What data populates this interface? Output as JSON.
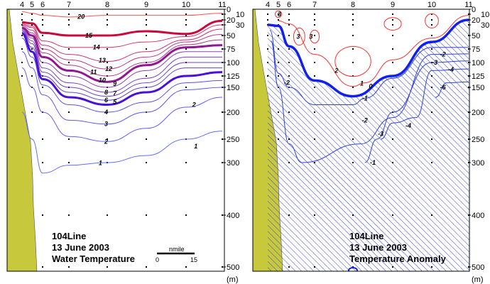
{
  "chart_data": [
    {
      "type": "contour",
      "title_lines": [
        "104Line",
        "13 June 2003",
        "Water Temperature"
      ],
      "stations": [
        "4",
        "5",
        "6",
        "7",
        "8",
        "9",
        "10",
        "11"
      ],
      "depth_ticks": [
        0,
        10,
        20,
        30,
        50,
        75,
        100,
        125,
        150,
        200,
        250,
        300,
        400,
        500
      ],
      "depth_unit": "(m)",
      "ylim": [
        0,
        500
      ],
      "scale_bar": {
        "unit": "nmile",
        "start": "0",
        "end": "15"
      },
      "contours": [
        {
          "level": "20",
          "color": "#ff5050",
          "thick": false,
          "depths": [
            5,
            8,
            12,
            15,
            12,
            12,
            12,
            8
          ],
          "label_at": [
            7.3,
            17
          ]
        },
        {
          "level": "15",
          "color": "#c80a3c",
          "thick": true,
          "depths": [
            25,
            27,
            45,
            50,
            50,
            42,
            47,
            22
          ],
          "label_at": [
            7.5,
            50
          ]
        },
        {
          "level": "14",
          "color": "#d8306a",
          "thick": false,
          "depths": [
            28,
            32,
            60,
            72,
            72,
            62,
            52,
            30
          ],
          "label_at": [
            7.7,
            73
          ]
        },
        {
          "level": "13",
          "color": "#c8307a",
          "thick": false,
          "depths": [
            30,
            35,
            68,
            85,
            98,
            80,
            58,
            38
          ],
          "label_at": [
            7.85,
            92
          ]
        },
        {
          "level": "12",
          "color": "#c03888",
          "thick": false,
          "depths": [
            32,
            40,
            75,
            95,
            112,
            90,
            62,
            48
          ],
          "label_at": [
            7.8,
            106
          ]
        },
        {
          "level": "11",
          "color": "#b03890",
          "thick": false,
          "depths": [
            34,
            45,
            82,
            105,
            125,
            100,
            67,
            58
          ],
          "label_at": [
            7.85,
            120
          ]
        },
        {
          "level": "10",
          "color": "#901890",
          "thick": true,
          "depths": [
            36,
            50,
            90,
            115,
            138,
            105,
            72,
            68
          ],
          "label_at": [
            7.85,
            135
          ]
        },
        {
          "level": "9",
          "color": "#9040b0",
          "thick": false,
          "depths": [
            38,
            55,
            100,
            125,
            150,
            115,
            80,
            80
          ],
          "label_at": [
            8.0,
            150
          ]
        },
        {
          "level": "8",
          "color": "#8040c0",
          "thick": false,
          "depths": [
            40,
            60,
            110,
            140,
            160,
            130,
            90,
            90
          ],
          "label_at": [
            8.0,
            158
          ]
        },
        {
          "level": "7",
          "color": "#7040c8",
          "thick": false,
          "depths": [
            42,
            65,
            118,
            150,
            168,
            140,
            100,
            100
          ],
          "label_at": [
            8.0,
            166
          ]
        },
        {
          "level": "6",
          "color": "#6040d0",
          "thick": false,
          "depths": [
            44,
            72,
            125,
            160,
            176,
            150,
            110,
            110
          ],
          "label_at": [
            8.0,
            174
          ]
        },
        {
          "level": "5",
          "color": "#4a10d8",
          "thick": true,
          "depths": [
            46,
            80,
            132,
            170,
            185,
            160,
            125,
            118
          ],
          "label_at": [
            8.0,
            184
          ]
        },
        {
          "level": "4",
          "color": "#5a50e8",
          "thick": false,
          "depths": [
            55,
            90,
            145,
            185,
            200,
            180,
            140,
            135
          ],
          "label_at": [
            8.0,
            200
          ]
        },
        {
          "level": "3",
          "color": "#5a5af0",
          "thick": false,
          "depths": [
            80,
            110,
            165,
            215,
            222,
            200,
            155,
            150
          ],
          "label_at": [
            8.0,
            222
          ]
        },
        {
          "level": "2",
          "color": "#6060f8",
          "thick": false,
          "depths": [
            110,
            150,
            200,
            245,
            255,
            230,
            190,
            170
          ],
          "label_at": [
            8.0,
            255
          ]
        },
        {
          "level": "1",
          "color": "#6070ff",
          "thick": false,
          "depths": [
            200,
            250,
            320,
            305,
            300,
            285,
            250,
            235
          ],
          "label_at": [
            7.85,
            300
          ]
        }
      ],
      "extra_labels": [
        {
          "text": "2",
          "at": [
            10.25,
            185
          ]
        },
        {
          "text": "1",
          "at": [
            10.3,
            265
          ]
        }
      ]
    },
    {
      "type": "contour",
      "title_lines": [
        "104Line",
        "13 June 2003",
        "Temperature Anomaly"
      ],
      "stations": [
        "4",
        "5",
        "6",
        "7",
        "8",
        "9",
        "10",
        "11"
      ],
      "depth_ticks": [
        0,
        10,
        20,
        30,
        50,
        75,
        100,
        125,
        150,
        200,
        250,
        300,
        400,
        500
      ],
      "depth_unit": "(m)",
      "ylim": [
        0,
        500
      ],
      "hatch_color": "#3040e0",
      "zero_line": {
        "level": "0",
        "color": "#1020f0",
        "depths": [
          30,
          32,
          70,
          135,
          168,
          125,
          62,
          20
        ],
        "label_at": [
          8.25,
          142
        ]
      },
      "contours": [
        {
          "level": "1",
          "color": "#ff3030",
          "stations": [
            5,
            6,
            7,
            8,
            8.3,
            9,
            10,
            11
          ],
          "depths": [
            22,
            28,
            85,
            148,
            140,
            95,
            55,
            12
          ],
          "label_at": [
            8.25,
            132
          ]
        },
        {
          "level": "-1",
          "color": "#3040e0",
          "stations": [
            4.2,
            5,
            6,
            7,
            8,
            8.3,
            9,
            10,
            11
          ],
          "depths": [
            40,
            120,
            150,
            185,
            185,
            172,
            130,
            72,
            72
          ],
          "label_at": [
            8.3,
            175
          ]
        },
        {
          "level": "-2",
          "color": "#3040e0",
          "stations": [
            4.3,
            5,
            6,
            6.5,
            8.2,
            9,
            10,
            11
          ],
          "depths": [
            60,
            150,
            260,
            300,
            260,
            210,
            85,
            84
          ],
          "label_at": [
            10.3,
            90
          ]
        },
        {
          "level": "-3",
          "color": "#3040e0",
          "stations": [
            8.3,
            8.6,
            9,
            10,
            11
          ],
          "depths": [
            300,
            250,
            200,
            100,
            97
          ],
          "label_at": [
            10.3,
            102
          ]
        },
        {
          "level": "-4",
          "color": "#3040e0",
          "stations": [
            8.7,
            9,
            9.6,
            10,
            11
          ],
          "depths": [
            250,
            220,
            210,
            115,
            112
          ],
          "label_at": [
            10.3,
            118
          ]
        },
        {
          "level": "-6",
          "color": "#3040e0",
          "stations": [
            10.1,
            10.4,
            11
          ],
          "depths": [
            170,
            140,
            138
          ],
          "label_at": [
            10.3,
            145
          ]
        }
      ],
      "loops": [
        {
          "level": "2",
          "color": "#ff3030",
          "center": [
            8.0,
            98
          ],
          "rx_station": 0.45,
          "ry_depth": 28,
          "label_at": [
            7.6,
            115
          ]
        },
        {
          "level": "",
          "color": "#ff3030",
          "center": [
            9.0,
            28
          ],
          "rx_station": 0.22,
          "ry_depth": 12
        },
        {
          "level": "",
          "color": "#ff3030",
          "center": [
            10.0,
            22
          ],
          "rx_station": 0.18,
          "ry_depth": 14
        },
        {
          "level": "3",
          "color": "#ff3030",
          "center": [
            5.0,
            10
          ],
          "rx_station": 0.3,
          "ry_depth": 6,
          "label_at": [
            5.2,
            10
          ]
        },
        {
          "level": "3",
          "color": "#ff3030",
          "center": [
            6.4,
            52
          ],
          "rx_station": 0.22,
          "ry_depth": 16,
          "label_at": [
            6.4,
            52
          ]
        },
        {
          "level": "3",
          "color": "#ff3030",
          "center": [
            7.0,
            52
          ],
          "rx_station": 0.12,
          "ry_depth": 12,
          "label_at": [
            6.9,
            52
          ]
        }
      ],
      "extra_labels": [
        {
          "text": "-2",
          "at": [
            5.8,
            140
          ]
        },
        {
          "text": "-2",
          "at": [
            8.3,
            215
          ]
        },
        {
          "text": "-3",
          "at": [
            8.7,
            240
          ]
        },
        {
          "text": "-4",
          "at": [
            9.4,
            225
          ]
        },
        {
          "text": "-1",
          "at": [
            8.5,
            300
          ]
        }
      ]
    }
  ]
}
